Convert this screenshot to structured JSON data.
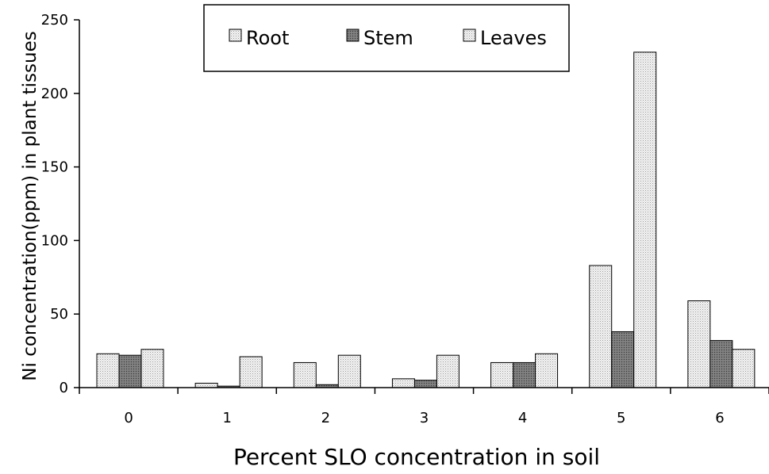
{
  "chart_data": {
    "type": "bar",
    "xlabel": "Percent SLO concentration in soil",
    "ylabel": "Ni concentration(ppm) in plant tissues",
    "categories": [
      "0",
      "1",
      "2",
      "3",
      "4",
      "5",
      "6"
    ],
    "ylim": [
      0,
      250
    ],
    "yticks": [
      0,
      50,
      100,
      150,
      200,
      250
    ],
    "grid": false,
    "legend_position": "top",
    "series": [
      {
        "name": "Root",
        "values": [
          23,
          3,
          17,
          6,
          17,
          83,
          59
        ],
        "color": "#e8e8e8",
        "pattern": "dotted-light"
      },
      {
        "name": "Stem",
        "values": [
          22,
          1,
          2,
          5,
          17,
          38,
          32
        ],
        "color": "#808080",
        "pattern": "dotted-dark"
      },
      {
        "name": "Leaves",
        "values": [
          26,
          21,
          22,
          22,
          23,
          228,
          26
        ],
        "color": "#f2f2f2",
        "pattern": "dotted-light"
      }
    ]
  }
}
